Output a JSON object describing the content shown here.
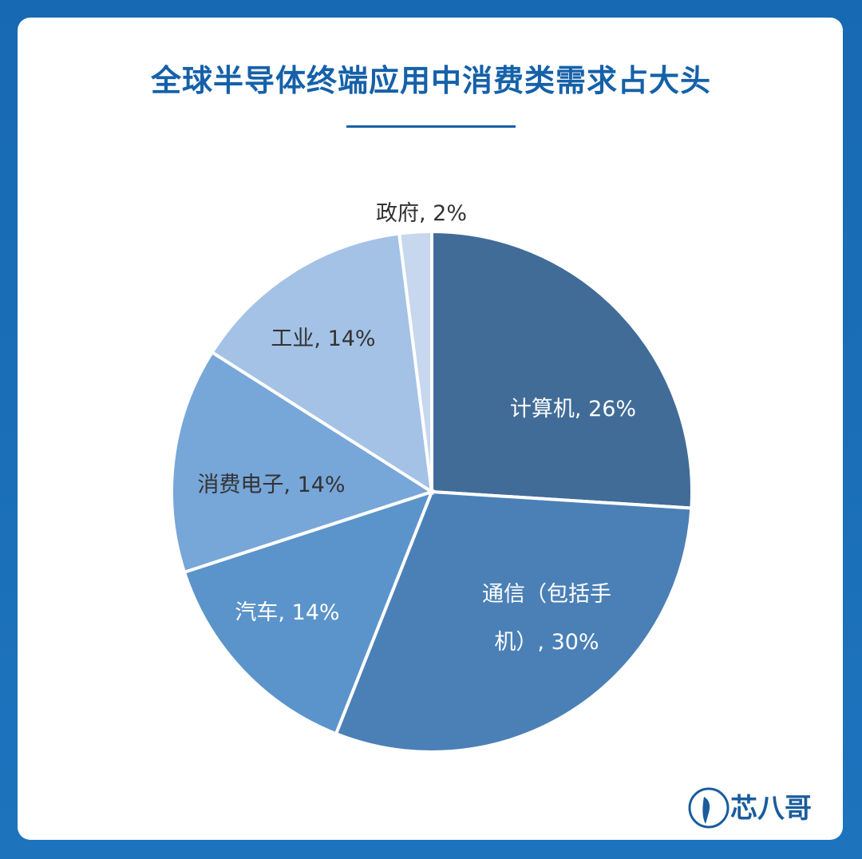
{
  "chart_data": {
    "type": "pie",
    "title": "全球半导体终端应用中消费类需求占大头",
    "values": [
      26,
      30,
      14,
      14,
      14,
      2
    ],
    "value_labels": [
      "计算机, 26%",
      "通信（包括手机）, 30%",
      "汽车, 14%",
      "消费电子, 14%",
      "工业, 14%",
      "政府, 2%"
    ],
    "colors": [
      "#416c98",
      "#4b80b6",
      "#5b94ca",
      "#77a6d8",
      "#a4c2e6",
      "#c6d7ee"
    ]
  },
  "logo": "芯八哥"
}
